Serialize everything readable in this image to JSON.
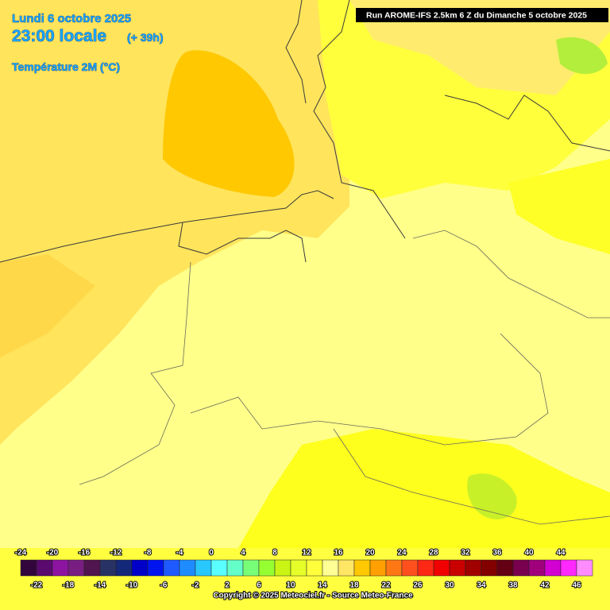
{
  "header": {
    "date": "Lundi 6 octobre 2025",
    "time": "23:00 locale",
    "lead": "(+ 39h)",
    "variable": "Température 2M (°C)"
  },
  "run": "Run AROME-IFS 2.5km 6 Z du Dimanche 5 octobre 2025",
  "scale": {
    "ticks": [
      -24,
      -22,
      -20,
      -18,
      -16,
      -14,
      -12,
      -10,
      -8,
      -6,
      -4,
      -2,
      0,
      2,
      4,
      6,
      8,
      10,
      12,
      14,
      16,
      18,
      20,
      22,
      24,
      26,
      28,
      30,
      32,
      34,
      36,
      38,
      40,
      42,
      44,
      46
    ],
    "colors": [
      "#32063c",
      "#5a0a6e",
      "#8c14a0",
      "#781e82",
      "#50144e",
      "#283264",
      "#14287a",
      "#0000c8",
      "#0014f0",
      "#1e5aff",
      "#1e8cff",
      "#28c8ff",
      "#5affff",
      "#64ffc8",
      "#78ff78",
      "#96ff32",
      "#c8f514",
      "#e6ff28",
      "#ffff3c",
      "#ffff96",
      "#ffe664",
      "#ffc800",
      "#ffa000",
      "#ff7814",
      "#ff501e",
      "#ff2814",
      "#f00000",
      "#c80000",
      "#a00000",
      "#820000",
      "#640014",
      "#78004e",
      "#a0007c",
      "#d200d2",
      "#ff28ff",
      "#ff8cff"
    ]
  },
  "copyright": "Copyright © 2025 Meteociel.fr - Source Meteo-France"
}
